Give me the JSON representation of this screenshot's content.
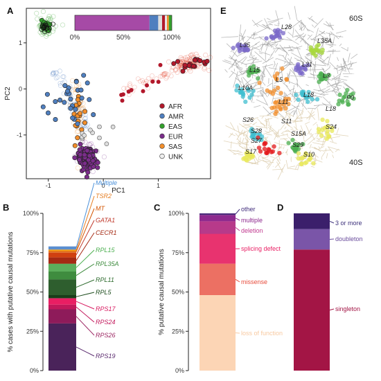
{
  "panels": {
    "A": "A",
    "B": "B",
    "C": "C",
    "D": "D",
    "E": "E"
  },
  "chart_data": [
    {
      "id": "A",
      "type": "scatter",
      "xlabel": "PC1",
      "ylabel": "PC2",
      "xlim": [
        -1.4,
        1.95
      ],
      "ylim": [
        -1.95,
        1.75
      ],
      "xticks": [
        -1,
        0,
        1
      ],
      "yticks": [
        -1,
        0,
        1
      ],
      "grid": false,
      "legend_position": "bottom-right",
      "legend": [
        {
          "name": "AFR",
          "color": "#b2182b"
        },
        {
          "name": "AMR",
          "color": "#4f7fbf"
        },
        {
          "name": "EAS",
          "color": "#33a02c"
        },
        {
          "name": "EUR",
          "color": "#7b2d8b"
        },
        {
          "name": "SAS",
          "color": "#f28e2b"
        },
        {
          "name": "UNK",
          "color": "#bdbdbd"
        }
      ],
      "clusters": [
        {
          "group": "EAS",
          "cx": -1.05,
          "cy": 1.35,
          "sx": 0.06,
          "sy": 0.09
        },
        {
          "group": "AFR",
          "cx": 1.6,
          "cy": 0.55,
          "sx": 0.14,
          "sy": 0.09
        },
        {
          "group": "EUR",
          "cx": -0.3,
          "cy": -1.5,
          "sx": 0.09,
          "sy": 0.13
        },
        {
          "group": "SAS",
          "cx": -0.45,
          "cy": -0.5,
          "sx": 0.05,
          "sy": 0.28
        },
        {
          "group": "AMR",
          "cx": -0.55,
          "cy": -0.3,
          "sx": 0.22,
          "sy": 0.3
        }
      ],
      "inset": {
        "type": "stacked-bar",
        "ticks": [
          "0%",
          "50%",
          "100%"
        ],
        "segments": [
          {
            "name": "EUR",
            "value": 0.77,
            "color": "#a64aa6"
          },
          {
            "name": "AMR",
            "value": 0.09,
            "color": "#4f7fbf"
          },
          {
            "name": "UNK",
            "value": 0.04,
            "color": "#dddddd"
          },
          {
            "name": "AFR",
            "value": 0.03,
            "color": "#b2182b"
          },
          {
            "name": "UNK",
            "value": 0.02,
            "color": "#e8e8e8"
          },
          {
            "name": "SAS",
            "value": 0.02,
            "color": "#f28e2b"
          },
          {
            "name": "EAS",
            "value": 0.03,
            "color": "#33a02c"
          }
        ]
      }
    },
    {
      "id": "B",
      "type": "bar",
      "ylabel": "% cases with putative causal mutations",
      "ylim": [
        0,
        100
      ],
      "yticks": [
        "0%",
        "25%",
        "50%",
        "75%",
        "100%"
      ],
      "stack": [
        {
          "name": "RPS19",
          "from": 0,
          "to": 30,
          "color": "#4a235a",
          "label_color": "#5b2c6f"
        },
        {
          "name": "RPS26",
          "from": 30,
          "to": 39,
          "color": "#8e1b5a",
          "label_color": "#9c2763"
        },
        {
          "name": "RPS24",
          "from": 39,
          "to": 42,
          "color": "#c2185b",
          "label_color": "#c2185b"
        },
        {
          "name": "RPS17",
          "from": 42,
          "to": 46,
          "color": "#e91e63",
          "label_color": "#d81b60"
        },
        {
          "name": "RPL5",
          "from": 46,
          "to": 48,
          "color": "#1a3d1a",
          "label_color": "#1e4d1e"
        },
        {
          "name": "RPL11",
          "from": 48,
          "to": 58,
          "color": "#2e5e2e",
          "label_color": "#2e6b2e"
        },
        {
          "name": "RPL35A",
          "from": 58,
          "to": 63,
          "color": "#3f8c3f",
          "label_color": "#3f8c3f"
        },
        {
          "name": "RPL15",
          "from": 63,
          "to": 68,
          "color": "#5cae5c",
          "label_color": "#4caf50"
        },
        {
          "name": "CECR1",
          "from": 68,
          "to": 72,
          "color": "#a52a14",
          "label_color": "#a52a14"
        },
        {
          "name": "GATA1",
          "from": 72,
          "to": 75,
          "color": "#d04010",
          "label_color": "#c0392b"
        },
        {
          "name": "MT",
          "from": 75,
          "to": 76,
          "color": "#e06b1f",
          "label_color": "#d35400"
        },
        {
          "name": "TSR2",
          "from": 76,
          "to": 77,
          "color": "#f39c12",
          "label_color": "#e67e22"
        },
        {
          "name": "Multiple",
          "from": 77,
          "to": 79,
          "color": "#5b8fd0",
          "label_color": "#4a90d9"
        }
      ]
    },
    {
      "id": "C",
      "type": "bar",
      "ylabel": "% putative causal mutations",
      "ylim": [
        0,
        100
      ],
      "yticks": [
        "0%",
        "25%",
        "50%",
        "75%",
        "100%"
      ],
      "stack": [
        {
          "name": "loss of function",
          "from": 0,
          "to": 48,
          "color": "#fcd5b5",
          "label_color": "#f8c9a0"
        },
        {
          "name": "missense",
          "from": 48,
          "to": 68,
          "color": "#ec7063",
          "label_color": "#e74c3c"
        },
        {
          "name": "splicing defect",
          "from": 68,
          "to": 87,
          "color": "#e8336f",
          "label_color": "#e91e63"
        },
        {
          "name": "deletion",
          "from": 87,
          "to": 95,
          "color": "#b73a8a",
          "label_color": "#c0398f"
        },
        {
          "name": "multiple",
          "from": 95,
          "to": 99,
          "color": "#8e2a8e",
          "label_color": "#8e2a8e"
        },
        {
          "name": "other",
          "from": 99,
          "to": 100,
          "color": "#4a2a7a",
          "label_color": "#3f2a7a"
        }
      ]
    },
    {
      "id": "D",
      "type": "bar",
      "ylim": [
        0,
        100
      ],
      "stack": [
        {
          "name": "singleton",
          "from": 0,
          "to": 77,
          "color": "#a31545",
          "label_color": "#a31545"
        },
        {
          "name": "doubleton",
          "from": 77,
          "to": 90,
          "color": "#7a55a8",
          "label_color": "#6a4c9c"
        },
        {
          "name": "3 or more",
          "from": 90,
          "to": 100,
          "color": "#3b1f6b",
          "label_color": "#3b2f7a"
        }
      ]
    },
    {
      "id": "E",
      "type": "other",
      "subunit_labels": [
        "60S",
        "40S"
      ],
      "proteins": [
        {
          "name": "L28",
          "x": 406,
          "y": 42,
          "color": "#7a68c8"
        },
        {
          "name": "L35",
          "x": 346,
          "y": 68,
          "color": "#7a68c8"
        },
        {
          "name": "L35A",
          "x": 458,
          "y": 62,
          "color": "#a8d83c"
        },
        {
          "name": "L31",
          "x": 436,
          "y": 96,
          "color": "#7a68c8"
        },
        {
          "name": "L15",
          "x": 360,
          "y": 104,
          "color": "#4caf50"
        },
        {
          "name": "L5",
          "x": 398,
          "y": 118,
          "color": "#f28e2b"
        },
        {
          "name": "L3",
          "x": 466,
          "y": 112,
          "color": "#4caf50"
        },
        {
          "name": "L10A",
          "x": 344,
          "y": 130,
          "color": "#40bfd0"
        },
        {
          "name": "L18",
          "x": 438,
          "y": 140,
          "color": "#40bfd0"
        },
        {
          "name": "P0",
          "x": 500,
          "y": 144,
          "color": "#4caf50"
        },
        {
          "name": "L11",
          "x": 402,
          "y": 150,
          "color": "#f28e2b"
        },
        {
          "name": "L18",
          "x": 470,
          "y": 160,
          "color": "#dddddd"
        },
        {
          "name": "S26",
          "x": 350,
          "y": 176,
          "color": "#d9c9a8"
        },
        {
          "name": "S11",
          "x": 406,
          "y": 178,
          "color": "#d9c9a8"
        },
        {
          "name": "S24",
          "x": 470,
          "y": 186,
          "color": "#e8e85a"
        },
        {
          "name": "S28",
          "x": 362,
          "y": 192,
          "color": "#40bfd0"
        },
        {
          "name": "S15A",
          "x": 420,
          "y": 196,
          "color": "#d9c9a8"
        },
        {
          "name": "S27",
          "x": 362,
          "y": 206,
          "color": "#d9c9a8"
        },
        {
          "name": "S29",
          "x": 422,
          "y": 212,
          "color": "#4caf50"
        },
        {
          "name": "S17",
          "x": 354,
          "y": 222,
          "color": "#e8e85a"
        },
        {
          "name": "S10",
          "x": 438,
          "y": 226,
          "color": "#e8e85a"
        }
      ]
    }
  ]
}
